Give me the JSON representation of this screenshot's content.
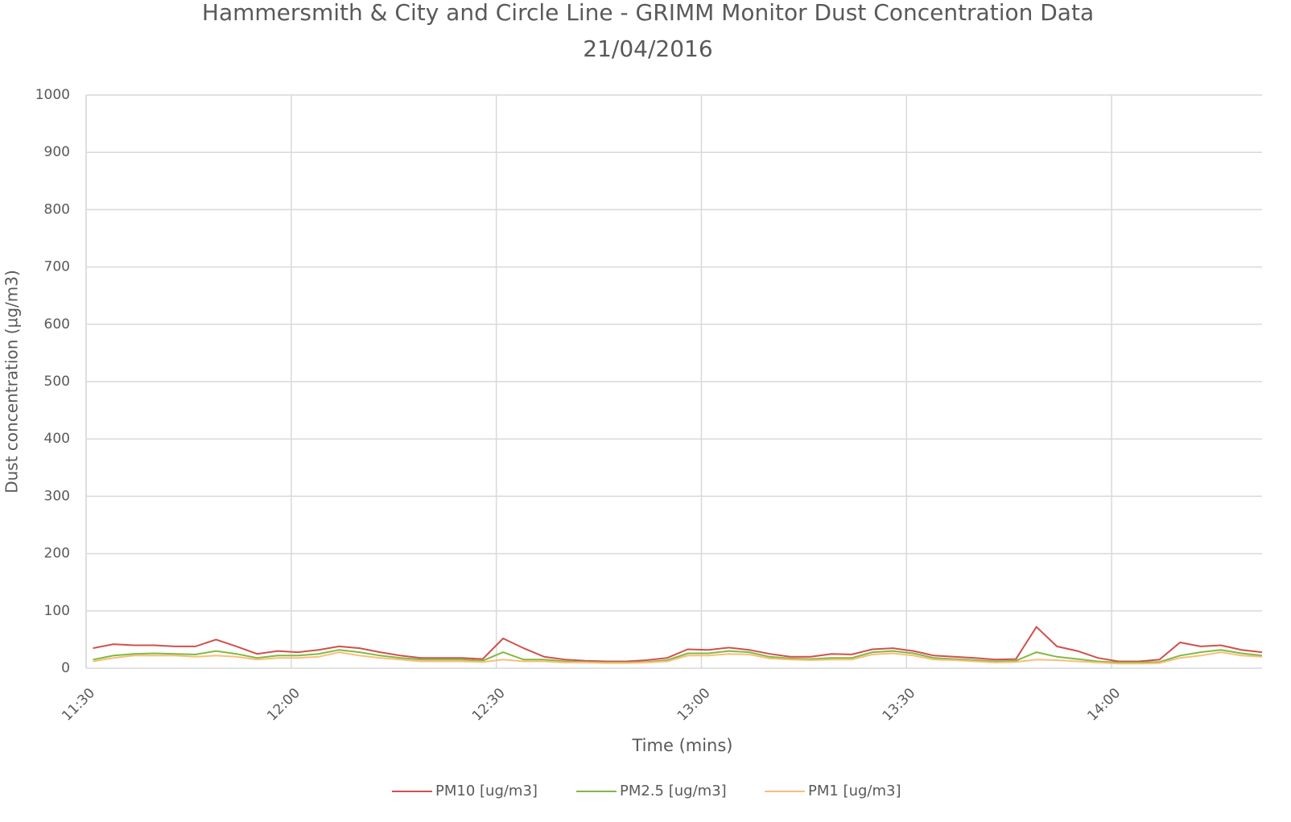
{
  "chart_data": {
    "type": "line",
    "title": "Hammersmith & City and Circle Line - GRIMM  Monitor Dust Concentration Data",
    "subtitle": "21/04/2016",
    "x_label": "Time (mins)",
    "y_label": "Dust concentration (µg/m3)",
    "x": [
      "11:31",
      "11:34",
      "11:37",
      "11:40",
      "11:43",
      "11:46",
      "11:49",
      "11:52",
      "11:55",
      "11:58",
      "12:01",
      "12:04",
      "12:07",
      "12:10",
      "12:13",
      "12:16",
      "12:19",
      "12:22",
      "12:25",
      "12:28",
      "12:31",
      "12:34",
      "12:37",
      "12:40",
      "12:43",
      "12:46",
      "12:49",
      "12:52",
      "12:55",
      "12:58",
      "13:01",
      "13:04",
      "13:07",
      "13:10",
      "13:13",
      "13:16",
      "13:19",
      "13:22",
      "13:25",
      "13:28",
      "13:31",
      "13:34",
      "13:37",
      "13:40",
      "13:43",
      "13:46",
      "13:49",
      "13:52",
      "13:55",
      "13:58",
      "14:01",
      "14:04",
      "14:07",
      "14:10",
      "14:13",
      "14:16",
      "14:19",
      "14:22"
    ],
    "series": [
      {
        "name": "PM10 [ug/m3]",
        "color": "#d0504d",
        "values": [
          35,
          42,
          40,
          40,
          38,
          38,
          50,
          38,
          25,
          30,
          28,
          32,
          38,
          35,
          28,
          22,
          18,
          18,
          18,
          16,
          52,
          35,
          20,
          15,
          13,
          12,
          12,
          14,
          18,
          33,
          32,
          36,
          32,
          25,
          20,
          20,
          25,
          24,
          33,
          35,
          30,
          22,
          20,
          18,
          15,
          16,
          72,
          38,
          30,
          18,
          12,
          12,
          15,
          45,
          38,
          40,
          32,
          28
        ]
      },
      {
        "name": "PM2.5 [ug/m3]",
        "color": "#7fba42",
        "values": [
          15,
          22,
          25,
          26,
          25,
          24,
          30,
          25,
          18,
          22,
          22,
          25,
          32,
          28,
          22,
          18,
          15,
          15,
          15,
          13,
          28,
          15,
          15,
          12,
          11,
          10,
          10,
          11,
          14,
          26,
          26,
          30,
          28,
          20,
          17,
          16,
          18,
          18,
          28,
          30,
          26,
          18,
          16,
          14,
          12,
          13,
          28,
          20,
          16,
          12,
          10,
          10,
          11,
          22,
          28,
          32,
          26,
          22
        ]
      },
      {
        "name": "PM1 [ug/m3]",
        "color": "#f9be78",
        "values": [
          12,
          18,
          22,
          22,
          22,
          20,
          22,
          20,
          15,
          18,
          18,
          20,
          28,
          22,
          18,
          15,
          12,
          12,
          12,
          11,
          15,
          12,
          12,
          10,
          10,
          9,
          9,
          10,
          12,
          22,
          22,
          25,
          24,
          17,
          15,
          14,
          15,
          15,
          24,
          26,
          22,
          15,
          14,
          12,
          10,
          11,
          15,
          14,
          12,
          10,
          8,
          8,
          9,
          18,
          22,
          28,
          22,
          20
        ]
      }
    ],
    "xlim": [
      "11:30",
      "14:22"
    ],
    "xticks": [
      "11:30",
      "12:00",
      "12:30",
      "13:00",
      "13:30",
      "14:00"
    ],
    "ylim": [
      0,
      1000
    ],
    "yticks": [
      0,
      100,
      200,
      300,
      400,
      500,
      600,
      700,
      800,
      900,
      1000
    ],
    "grid": true,
    "legend": "bottom"
  }
}
